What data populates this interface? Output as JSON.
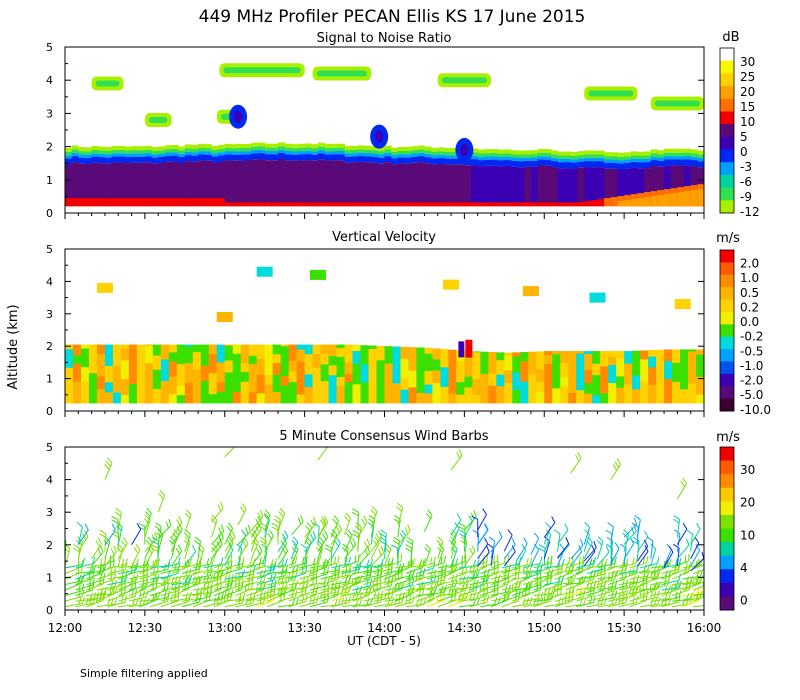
{
  "title": "449 MHz Profiler PECAN Ellis KS 17 June 2015",
  "ylabel": "Altitude (km)",
  "xlabel": "UT  (CDT - 5)",
  "footer": "Simple filtering applied",
  "chart_data": [
    {
      "type": "heatmap",
      "title": "Signal to Noise Ratio",
      "units": "dB",
      "xlim": [
        0,
        240
      ],
      "ylim": [
        0,
        5
      ],
      "x_ticks": [
        "12:00",
        "12:30",
        "13:00",
        "13:30",
        "14:00",
        "14:30",
        "15:00",
        "15:30",
        "16:00"
      ],
      "y_ticks": [
        "0",
        "1",
        "2",
        "3",
        "4",
        "5"
      ],
      "colorbar_labels": [
        "30",
        "25",
        "20",
        "15",
        "10",
        "5",
        "0",
        "-3",
        "-6",
        "-9",
        "-12"
      ],
      "colorbar_colors": [
        "#ffffff",
        "#f8f800",
        "#ffd000",
        "#ffa000",
        "#ff7000",
        "#f00000",
        "#5a0a78",
        "#3c00b4",
        "#0028f0",
        "#00a0ff",
        "#00d2a0",
        "#30e050",
        "#a8f000"
      ],
      "boundary_layer_top_km": [
        2.0,
        2.0,
        2.0,
        2.05,
        2.05,
        2.1,
        2.1,
        2.05,
        2.0,
        2.0,
        1.95,
        1.9,
        1.9,
        1.85,
        1.85,
        1.9,
        1.9
      ],
      "elevated_layers": [
        {
          "t_start": 10,
          "t_end": 22,
          "z_km": 3.9
        },
        {
          "t_start": 30,
          "t_end": 40,
          "z_km": 2.8
        },
        {
          "t_start": 57,
          "t_end": 67,
          "z_km": 2.9
        },
        {
          "t_start": 58,
          "t_end": 90,
          "z_km": 4.3
        },
        {
          "t_start": 93,
          "t_end": 115,
          "z_km": 4.2
        },
        {
          "t_start": 140,
          "t_end": 160,
          "z_km": 4.0
        },
        {
          "t_start": 195,
          "t_end": 215,
          "z_km": 3.6
        },
        {
          "t_start": 220,
          "t_end": 240,
          "z_km": 3.3
        }
      ]
    },
    {
      "type": "heatmap",
      "title": "Vertical Velocity",
      "units": "m/s",
      "xlim": [
        0,
        240
      ],
      "ylim": [
        0,
        5
      ],
      "x_ticks": [
        "12:00",
        "12:30",
        "13:00",
        "13:30",
        "14:00",
        "14:30",
        "15:00",
        "15:30",
        "16:00"
      ],
      "y_ticks": [
        "0",
        "1",
        "2",
        "3",
        "4",
        "5"
      ],
      "colorbar_labels": [
        "2.0",
        "1.0",
        "0.5",
        "0.2",
        "0.0",
        "-0.2",
        "-0.5",
        "-1.0",
        "-2.0",
        "-5.0",
        "-10.0"
      ],
      "colorbar_colors": [
        "#f00000",
        "#ff5a00",
        "#ff8c00",
        "#ffb400",
        "#ffd200",
        "#f0f000",
        "#3ce000",
        "#00dcdc",
        "#00a0ff",
        "#0050f0",
        "#3c00b4",
        "#5a0a78",
        "#3c0030"
      ],
      "boundary_layer_top_km": [
        2.05,
        2.05,
        2.05,
        2.05,
        2.05,
        2.05,
        2.05,
        2.05,
        2.0,
        1.95,
        1.85,
        1.8,
        1.85,
        1.85,
        1.85,
        1.9,
        1.9
      ]
    },
    {
      "type": "wind_barbs",
      "title": "5 Minute Consensus Wind Barbs",
      "units": "m/s",
      "xlim": [
        0,
        240
      ],
      "ylim": [
        0,
        5
      ],
      "x_ticks": [
        "12:00",
        "12:30",
        "13:00",
        "13:30",
        "14:00",
        "14:30",
        "15:00",
        "15:30",
        "16:00"
      ],
      "y_ticks": [
        "0",
        "1",
        "2",
        "3",
        "4",
        "5"
      ],
      "colorbar_labels": [
        "30",
        "20",
        "10",
        "4",
        "0"
      ],
      "colorbar_colors": [
        "#f00000",
        "#ff5a00",
        "#ff8c00",
        "#ffc800",
        "#f0f000",
        "#7ce000",
        "#3ce000",
        "#00d2a0",
        "#00a0ff",
        "#0028f0",
        "#3c00b4",
        "#5a0a78"
      ],
      "barbs": [
        {
          "t": 5,
          "z": 2.0,
          "s": 4
        },
        {
          "t": 15,
          "z": 2.0,
          "s": 5
        },
        {
          "t": 25,
          "z": 2.0,
          "s": 3
        },
        {
          "t": 35,
          "z": 2.2,
          "s": 8
        },
        {
          "t": 45,
          "z": 2.4,
          "s": 10
        },
        {
          "t": 55,
          "z": 2.7,
          "s": 12
        },
        {
          "t": 65,
          "z": 2.6,
          "s": 11
        },
        {
          "t": 75,
          "z": 2.4,
          "s": 9
        },
        {
          "t": 85,
          "z": 2.3,
          "s": 9
        },
        {
          "t": 95,
          "z": 2.2,
          "s": 10
        },
        {
          "t": 105,
          "z": 2.3,
          "s": 11
        },
        {
          "t": 115,
          "z": 2.5,
          "s": 12
        },
        {
          "t": 125,
          "z": 2.6,
          "s": 10
        },
        {
          "t": 135,
          "z": 2.4,
          "s": 8
        },
        {
          "t": 145,
          "z": 2.3,
          "s": 7
        },
        {
          "t": 155,
          "z": 2.0,
          "s": 4
        },
        {
          "t": 165,
          "z": 1.8,
          "s": 3
        },
        {
          "t": 175,
          "z": 1.7,
          "s": 4
        },
        {
          "t": 185,
          "z": 1.6,
          "s": 2
        },
        {
          "t": 195,
          "z": 1.5,
          "s": 3
        },
        {
          "t": 205,
          "z": 1.4,
          "s": 4
        },
        {
          "t": 215,
          "z": 1.5,
          "s": 3
        },
        {
          "t": 225,
          "z": 1.3,
          "s": 2
        },
        {
          "t": 235,
          "z": 1.2,
          "s": 3
        },
        {
          "t": 15,
          "z": 4.0,
          "s": 13
        },
        {
          "t": 35,
          "z": 3.0,
          "s": 12
        },
        {
          "t": 60,
          "z": 4.7,
          "s": 12
        },
        {
          "t": 95,
          "z": 4.6,
          "s": 11
        },
        {
          "t": 145,
          "z": 4.3,
          "s": 12
        },
        {
          "t": 190,
          "z": 4.2,
          "s": 12
        },
        {
          "t": 205,
          "z": 4.0,
          "s": 13
        },
        {
          "t": 230,
          "z": 3.4,
          "s": 12
        }
      ]
    }
  ]
}
